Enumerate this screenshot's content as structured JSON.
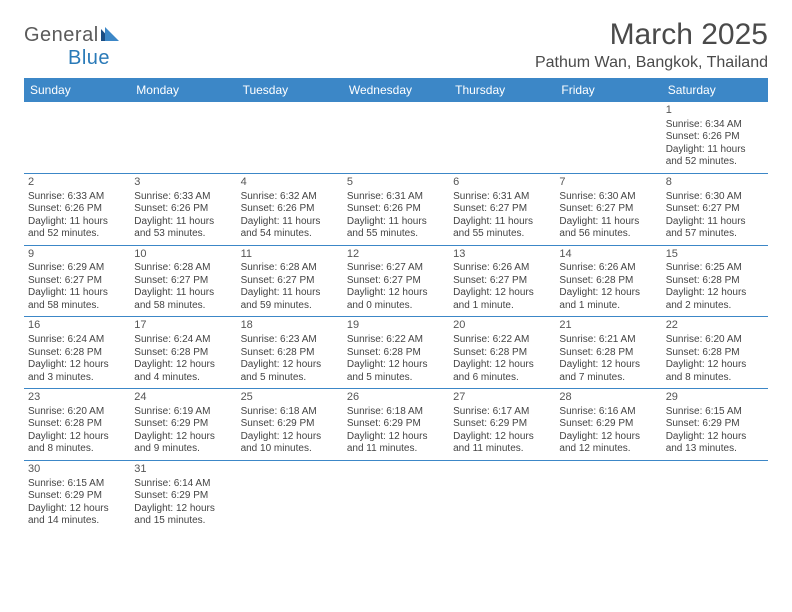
{
  "logo": {
    "text1": "General",
    "text2": "Blue"
  },
  "title": "March 2025",
  "location": "Pathum Wan, Bangkok, Thailand",
  "header_bg": "#3c87c7",
  "divider_color": "#3c87c7",
  "shaded_bg": "#f1f1f1",
  "days_of_week": [
    "Sunday",
    "Monday",
    "Tuesday",
    "Wednesday",
    "Thursday",
    "Friday",
    "Saturday"
  ],
  "weeks": [
    [
      null,
      null,
      null,
      null,
      null,
      null,
      {
        "n": "1",
        "sr": "Sunrise: 6:34 AM",
        "ss": "Sunset: 6:26 PM",
        "dl": "Daylight: 11 hours and 52 minutes."
      }
    ],
    [
      {
        "n": "2",
        "sr": "Sunrise: 6:33 AM",
        "ss": "Sunset: 6:26 PM",
        "dl": "Daylight: 11 hours and 52 minutes."
      },
      {
        "n": "3",
        "sr": "Sunrise: 6:33 AM",
        "ss": "Sunset: 6:26 PM",
        "dl": "Daylight: 11 hours and 53 minutes."
      },
      {
        "n": "4",
        "sr": "Sunrise: 6:32 AM",
        "ss": "Sunset: 6:26 PM",
        "dl": "Daylight: 11 hours and 54 minutes."
      },
      {
        "n": "5",
        "sr": "Sunrise: 6:31 AM",
        "ss": "Sunset: 6:26 PM",
        "dl": "Daylight: 11 hours and 55 minutes."
      },
      {
        "n": "6",
        "sr": "Sunrise: 6:31 AM",
        "ss": "Sunset: 6:27 PM",
        "dl": "Daylight: 11 hours and 55 minutes."
      },
      {
        "n": "7",
        "sr": "Sunrise: 6:30 AM",
        "ss": "Sunset: 6:27 PM",
        "dl": "Daylight: 11 hours and 56 minutes."
      },
      {
        "n": "8",
        "sr": "Sunrise: 6:30 AM",
        "ss": "Sunset: 6:27 PM",
        "dl": "Daylight: 11 hours and 57 minutes."
      }
    ],
    [
      {
        "n": "9",
        "sr": "Sunrise: 6:29 AM",
        "ss": "Sunset: 6:27 PM",
        "dl": "Daylight: 11 hours and 58 minutes."
      },
      {
        "n": "10",
        "sr": "Sunrise: 6:28 AM",
        "ss": "Sunset: 6:27 PM",
        "dl": "Daylight: 11 hours and 58 minutes."
      },
      {
        "n": "11",
        "sr": "Sunrise: 6:28 AM",
        "ss": "Sunset: 6:27 PM",
        "dl": "Daylight: 11 hours and 59 minutes."
      },
      {
        "n": "12",
        "sr": "Sunrise: 6:27 AM",
        "ss": "Sunset: 6:27 PM",
        "dl": "Daylight: 12 hours and 0 minutes."
      },
      {
        "n": "13",
        "sr": "Sunrise: 6:26 AM",
        "ss": "Sunset: 6:27 PM",
        "dl": "Daylight: 12 hours and 1 minute."
      },
      {
        "n": "14",
        "sr": "Sunrise: 6:26 AM",
        "ss": "Sunset: 6:28 PM",
        "dl": "Daylight: 12 hours and 1 minute."
      },
      {
        "n": "15",
        "sr": "Sunrise: 6:25 AM",
        "ss": "Sunset: 6:28 PM",
        "dl": "Daylight: 12 hours and 2 minutes."
      }
    ],
    [
      {
        "n": "16",
        "sr": "Sunrise: 6:24 AM",
        "ss": "Sunset: 6:28 PM",
        "dl": "Daylight: 12 hours and 3 minutes."
      },
      {
        "n": "17",
        "sr": "Sunrise: 6:24 AM",
        "ss": "Sunset: 6:28 PM",
        "dl": "Daylight: 12 hours and 4 minutes."
      },
      {
        "n": "18",
        "sr": "Sunrise: 6:23 AM",
        "ss": "Sunset: 6:28 PM",
        "dl": "Daylight: 12 hours and 5 minutes."
      },
      {
        "n": "19",
        "sr": "Sunrise: 6:22 AM",
        "ss": "Sunset: 6:28 PM",
        "dl": "Daylight: 12 hours and 5 minutes."
      },
      {
        "n": "20",
        "sr": "Sunrise: 6:22 AM",
        "ss": "Sunset: 6:28 PM",
        "dl": "Daylight: 12 hours and 6 minutes."
      },
      {
        "n": "21",
        "sr": "Sunrise: 6:21 AM",
        "ss": "Sunset: 6:28 PM",
        "dl": "Daylight: 12 hours and 7 minutes."
      },
      {
        "n": "22",
        "sr": "Sunrise: 6:20 AM",
        "ss": "Sunset: 6:28 PM",
        "dl": "Daylight: 12 hours and 8 minutes."
      }
    ],
    [
      {
        "n": "23",
        "sr": "Sunrise: 6:20 AM",
        "ss": "Sunset: 6:28 PM",
        "dl": "Daylight: 12 hours and 8 minutes."
      },
      {
        "n": "24",
        "sr": "Sunrise: 6:19 AM",
        "ss": "Sunset: 6:29 PM",
        "dl": "Daylight: 12 hours and 9 minutes."
      },
      {
        "n": "25",
        "sr": "Sunrise: 6:18 AM",
        "ss": "Sunset: 6:29 PM",
        "dl": "Daylight: 12 hours and 10 minutes."
      },
      {
        "n": "26",
        "sr": "Sunrise: 6:18 AM",
        "ss": "Sunset: 6:29 PM",
        "dl": "Daylight: 12 hours and 11 minutes."
      },
      {
        "n": "27",
        "sr": "Sunrise: 6:17 AM",
        "ss": "Sunset: 6:29 PM",
        "dl": "Daylight: 12 hours and 11 minutes."
      },
      {
        "n": "28",
        "sr": "Sunrise: 6:16 AM",
        "ss": "Sunset: 6:29 PM",
        "dl": "Daylight: 12 hours and 12 minutes."
      },
      {
        "n": "29",
        "sr": "Sunrise: 6:15 AM",
        "ss": "Sunset: 6:29 PM",
        "dl": "Daylight: 12 hours and 13 minutes."
      }
    ],
    [
      {
        "n": "30",
        "sr": "Sunrise: 6:15 AM",
        "ss": "Sunset: 6:29 PM",
        "dl": "Daylight: 12 hours and 14 minutes."
      },
      {
        "n": "31",
        "sr": "Sunrise: 6:14 AM",
        "ss": "Sunset: 6:29 PM",
        "dl": "Daylight: 12 hours and 15 minutes."
      },
      null,
      null,
      null,
      null,
      null
    ]
  ]
}
